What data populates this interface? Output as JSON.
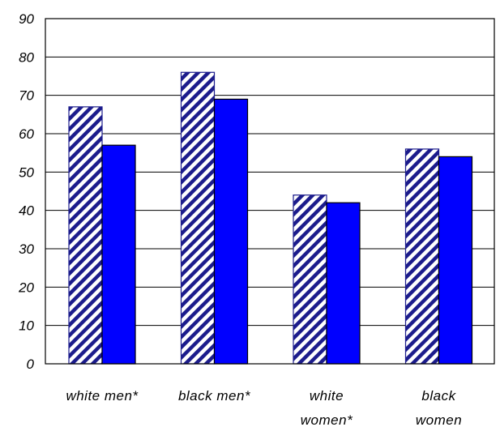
{
  "chart_data": {
    "type": "bar",
    "title": "",
    "xlabel": "",
    "ylabel": "",
    "ylim": [
      0,
      90
    ],
    "yticks": [
      0,
      10,
      20,
      30,
      40,
      50,
      60,
      70,
      80,
      90
    ],
    "grid": true,
    "categories": [
      [
        "white men*"
      ],
      [
        "black men*"
      ],
      [
        "white",
        "women*"
      ],
      [
        "black",
        "women"
      ]
    ],
    "series": [
      {
        "values": [
          67,
          76,
          44,
          56
        ],
        "fill": "hatch",
        "color": "#1c1c8c"
      },
      {
        "values": [
          57,
          69,
          42,
          54
        ],
        "fill": "solid",
        "color": "#0000ff"
      }
    ]
  }
}
